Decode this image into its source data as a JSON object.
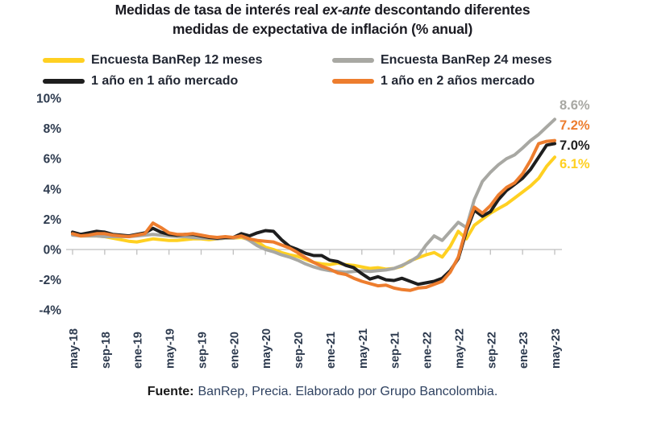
{
  "title": {
    "line1_pre": "Medidas de tasa de interés real ",
    "line1_italic": "ex-ante",
    "line1_post": " descontando diferentes",
    "line2": "medidas de expectativa de inflación (% anual)"
  },
  "footer": {
    "label": "Fuente:",
    "text": "BanRep, Precia. Elaborado por Grupo Bancolombia."
  },
  "colors": {
    "background": "#ffffff",
    "title": "#1b1b22",
    "axis": "#bfbfbf",
    "axis_label": "#2e3b4f",
    "legend_text": "#222733",
    "footer_label": "#1a1a1a",
    "footer_text": "#2e4160"
  },
  "chart_data": {
    "type": "line",
    "x_unit": "month",
    "x_start": "may-18",
    "x_end": "may-23",
    "n_points": 61,
    "x_tick_month_indices": [
      0,
      4,
      8,
      12,
      16,
      20,
      24,
      28,
      32,
      36,
      40,
      44,
      48,
      52,
      56,
      60
    ],
    "x_tick_labels": [
      "may-18",
      "sep-18",
      "ene-19",
      "may-19",
      "sep-19",
      "ene-20",
      "may-20",
      "sep-20",
      "ene-21",
      "may-21",
      "sep-21",
      "ene-22",
      "may-22",
      "sep-22",
      "ene-23",
      "may-23"
    ],
    "ylim": [
      -4,
      10
    ],
    "y_tick_values": [
      10,
      8,
      6,
      4,
      2,
      0,
      -2,
      -4
    ],
    "y_tick_labels": [
      "10%",
      "8%",
      "6%",
      "4%",
      "2%",
      "0%",
      "-2%",
      "-4%"
    ],
    "grid": "zero-axis-only",
    "legend_position": "top",
    "series": [
      {
        "name": "Encuesta BanRep 12 meses",
        "color": "#ffd021",
        "end_label": "6.1%",
        "end_value": 6.1,
        "values": [
          1.0,
          0.9,
          0.9,
          0.9,
          0.85,
          0.75,
          0.65,
          0.55,
          0.5,
          0.6,
          0.7,
          0.65,
          0.6,
          0.6,
          0.65,
          0.7,
          0.7,
          0.65,
          0.7,
          0.75,
          0.75,
          0.8,
          0.65,
          0.5,
          0.15,
          0.0,
          -0.2,
          -0.35,
          -0.45,
          -0.65,
          -0.85,
          -0.95,
          -1.0,
          -0.9,
          -1.0,
          -1.05,
          -1.15,
          -1.25,
          -1.2,
          -1.3,
          -1.25,
          -1.1,
          -0.75,
          -0.55,
          -0.35,
          -0.2,
          -0.5,
          0.2,
          1.2,
          0.7,
          1.6,
          2.0,
          2.4,
          2.7,
          3.0,
          3.4,
          3.8,
          4.2,
          4.7,
          5.5,
          6.1
        ]
      },
      {
        "name": "Encuesta BanRep 24 meses",
        "color": "#a8a8a3",
        "end_label": "8.6%",
        "end_value": 8.6,
        "values": [
          0.95,
          0.9,
          0.9,
          0.9,
          0.85,
          0.85,
          0.85,
          0.85,
          0.9,
          0.95,
          1.0,
          0.95,
          0.9,
          0.85,
          0.85,
          0.8,
          0.75,
          0.75,
          0.7,
          0.75,
          0.75,
          0.9,
          0.6,
          0.25,
          0.0,
          -0.15,
          -0.35,
          -0.5,
          -0.7,
          -0.95,
          -1.15,
          -1.3,
          -1.4,
          -1.45,
          -1.5,
          -1.45,
          -1.4,
          -1.45,
          -1.4,
          -1.35,
          -1.25,
          -1.05,
          -0.8,
          -0.45,
          0.3,
          0.9,
          0.6,
          1.2,
          1.8,
          1.45,
          3.3,
          4.5,
          5.1,
          5.6,
          6.0,
          6.25,
          6.7,
          7.2,
          7.6,
          8.1,
          8.6
        ]
      },
      {
        "name": "1 año en 1 año mercado",
        "color": "#1e1e1e",
        "end_label": "7.0%",
        "end_value": 7.0,
        "values": [
          1.15,
          1.0,
          1.1,
          1.2,
          1.15,
          1.0,
          0.95,
          0.9,
          1.0,
          1.1,
          1.4,
          1.15,
          1.0,
          0.95,
          1.0,
          1.0,
          0.9,
          0.8,
          0.75,
          0.8,
          0.8,
          1.05,
          0.9,
          1.1,
          1.25,
          1.2,
          0.65,
          0.2,
          0.0,
          -0.25,
          -0.4,
          -0.4,
          -0.7,
          -0.8,
          -1.05,
          -1.2,
          -1.6,
          -1.95,
          -1.8,
          -2.0,
          -2.05,
          -1.9,
          -2.1,
          -2.3,
          -2.2,
          -2.1,
          -1.9,
          -1.4,
          -0.6,
          1.2,
          2.6,
          2.2,
          2.5,
          3.3,
          3.9,
          4.3,
          4.7,
          5.3,
          6.1,
          6.9,
          7.0
        ]
      },
      {
        "name": "1 año en 2 años mercado",
        "color": "#ed7d2e",
        "end_label": "7.2%",
        "end_value": 7.2,
        "values": [
          1.05,
          0.9,
          0.95,
          1.05,
          1.05,
          0.95,
          0.9,
          0.85,
          0.95,
          1.05,
          1.75,
          1.45,
          1.1,
          1.0,
          1.0,
          1.05,
          0.95,
          0.85,
          0.8,
          0.85,
          0.8,
          0.9,
          0.7,
          0.6,
          0.55,
          0.5,
          0.3,
          0.1,
          -0.2,
          -0.55,
          -0.85,
          -1.1,
          -1.3,
          -1.55,
          -1.65,
          -1.9,
          -2.1,
          -2.25,
          -2.4,
          -2.35,
          -2.55,
          -2.65,
          -2.7,
          -2.55,
          -2.5,
          -2.3,
          -2.1,
          -1.5,
          -0.5,
          1.4,
          2.8,
          2.4,
          2.9,
          3.6,
          4.1,
          4.4,
          5.0,
          5.9,
          7.0,
          7.15,
          7.2
        ]
      }
    ]
  }
}
